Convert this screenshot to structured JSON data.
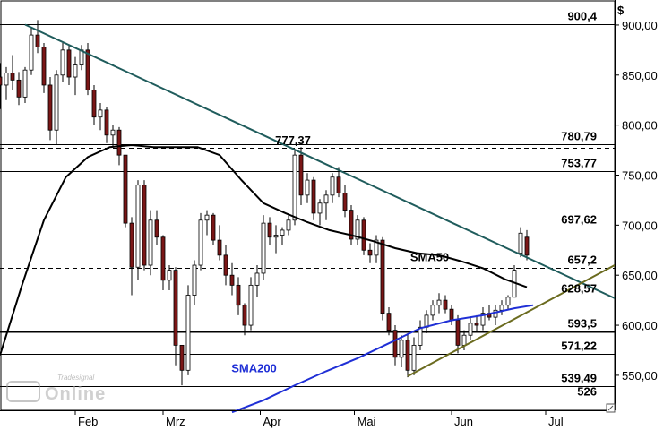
{
  "chart_data": {
    "type": "candlestick",
    "currency_label": "$",
    "y_range": [
      515,
      925
    ],
    "y_ticks": [
      {
        "value": 900,
        "label": "900,00"
      },
      {
        "value": 850,
        "label": "850,00"
      },
      {
        "value": 800,
        "label": "800,00"
      },
      {
        "value": 750,
        "label": "750,00"
      },
      {
        "value": 700,
        "label": "700,00"
      },
      {
        "value": 650,
        "label": "650,00"
      },
      {
        "value": 600,
        "label": "600,00"
      },
      {
        "value": 550,
        "label": "550,00"
      }
    ],
    "x_ticks": [
      {
        "day": 31,
        "label": "Feb"
      },
      {
        "day": 59,
        "label": "Mrz"
      },
      {
        "day": 90,
        "label": "Apr"
      },
      {
        "day": 120,
        "label": "Mai"
      },
      {
        "day": 151,
        "label": "Jun"
      },
      {
        "day": 181,
        "label": "Jul"
      }
    ],
    "x_range": [
      7,
      203
    ],
    "levels": [
      {
        "value": 900.4,
        "label": "900,4",
        "style": "solid"
      },
      {
        "value": 780.79,
        "label": "780,79",
        "style": "solid"
      },
      {
        "value": 777.37,
        "label": "",
        "style": "dashed"
      },
      {
        "value": 753.77,
        "label": "753,77",
        "style": "solid"
      },
      {
        "value": 697.62,
        "label": "697,62",
        "style": "solid"
      },
      {
        "value": 657.2,
        "label": "657,2",
        "style": "dashed"
      },
      {
        "value": 628.57,
        "label": "628,57",
        "style": "dashed"
      },
      {
        "value": 593.5,
        "label": "593,5",
        "style": "solid-bold"
      },
      {
        "value": 571.22,
        "label": "571,22",
        "style": "solid"
      },
      {
        "value": 539.49,
        "label": "539,49",
        "style": "solid"
      },
      {
        "value": 526,
        "label": "526",
        "style": "dashed"
      }
    ],
    "peak_annotation": {
      "day": 101,
      "value": 777.37,
      "label": "777,37"
    },
    "annotations": [
      {
        "text": "SMA50",
        "day": 144,
        "value": 664,
        "color": "#000000"
      },
      {
        "text": "SMA200",
        "day": 88,
        "value": 553,
        "color": "#1f2fd6"
      }
    ],
    "trendlines": [
      {
        "name": "resistance",
        "color": "#1f5c5c",
        "points": [
          [
            15,
            900.4
          ],
          [
            203,
            627
          ]
        ]
      },
      {
        "name": "support",
        "color": "#6b6b1f",
        "points": [
          [
            137,
            549
          ],
          [
            203,
            660
          ]
        ]
      }
    ],
    "sma50": [
      [
        7,
        570
      ],
      [
        14,
        640
      ],
      [
        21,
        705
      ],
      [
        28,
        748
      ],
      [
        35,
        768
      ],
      [
        42,
        778
      ],
      [
        49,
        780
      ],
      [
        56,
        778
      ],
      [
        63,
        778
      ],
      [
        70,
        778
      ],
      [
        77,
        770
      ],
      [
        84,
        745
      ],
      [
        91,
        722
      ],
      [
        98,
        712
      ],
      [
        105,
        703
      ],
      [
        112,
        695
      ],
      [
        119,
        690
      ],
      [
        126,
        684
      ],
      [
        133,
        677
      ],
      [
        140,
        672
      ],
      [
        147,
        670
      ],
      [
        154,
        664
      ],
      [
        161,
        657
      ],
      [
        168,
        646
      ],
      [
        175,
        638
      ]
    ],
    "sma200": [
      [
        81,
        513
      ],
      [
        91,
        525
      ],
      [
        101,
        540
      ],
      [
        111,
        554
      ],
      [
        121,
        567
      ],
      [
        131,
        582
      ],
      [
        141,
        597
      ],
      [
        151,
        605
      ],
      [
        161,
        610
      ],
      [
        171,
        617
      ],
      [
        177,
        620
      ]
    ],
    "candles": [
      [
        7,
        848,
        862,
        816,
        840
      ],
      [
        9,
        840,
        858,
        825,
        852
      ],
      [
        11,
        852,
        870,
        835,
        845
      ],
      [
        13,
        845,
        853,
        820,
        828
      ],
      [
        15,
        828,
        858,
        822,
        855
      ],
      [
        17,
        855,
        898,
        850,
        890
      ],
      [
        19,
        890,
        905,
        872,
        878
      ],
      [
        21,
        878,
        882,
        832,
        840
      ],
      [
        23,
        840,
        848,
        785,
        795
      ],
      [
        25,
        795,
        855,
        780,
        850
      ],
      [
        27,
        850,
        882,
        843,
        875
      ],
      [
        29,
        875,
        880,
        840,
        848
      ],
      [
        31,
        848,
        868,
        830,
        860
      ],
      [
        33,
        860,
        880,
        855,
        875
      ],
      [
        35,
        875,
        882,
        830,
        835
      ],
      [
        37,
        835,
        840,
        800,
        808
      ],
      [
        39,
        808,
        822,
        795,
        815
      ],
      [
        41,
        815,
        818,
        782,
        790
      ],
      [
        43,
        790,
        800,
        778,
        795
      ],
      [
        45,
        795,
        798,
        760,
        770
      ],
      [
        47,
        770,
        770,
        698,
        702
      ],
      [
        49,
        702,
        708,
        630,
        658
      ],
      [
        51,
        658,
        745,
        645,
        740
      ],
      [
        53,
        740,
        745,
        655,
        660
      ],
      [
        55,
        660,
        715,
        650,
        705
      ],
      [
        57,
        705,
        715,
        680,
        688
      ],
      [
        59,
        688,
        690,
        635,
        645
      ],
      [
        61,
        645,
        660,
        635,
        655
      ],
      [
        63,
        655,
        658,
        560,
        580
      ],
      [
        65,
        580,
        580,
        540,
        555
      ],
      [
        67,
        555,
        640,
        550,
        630
      ],
      [
        69,
        630,
        665,
        620,
        660
      ],
      [
        71,
        660,
        712,
        655,
        705
      ],
      [
        73,
        705,
        715,
        690,
        710
      ],
      [
        75,
        710,
        712,
        680,
        685
      ],
      [
        77,
        685,
        700,
        665,
        670
      ],
      [
        79,
        670,
        680,
        640,
        650
      ],
      [
        81,
        650,
        662,
        630,
        640
      ],
      [
        83,
        640,
        648,
        610,
        620
      ],
      [
        85,
        620,
        622,
        590,
        600
      ],
      [
        87,
        600,
        648,
        595,
        640
      ],
      [
        89,
        640,
        660,
        628,
        652
      ],
      [
        91,
        652,
        710,
        645,
        702
      ],
      [
        93,
        702,
        708,
        680,
        688
      ],
      [
        95,
        688,
        700,
        672,
        690
      ],
      [
        97,
        690,
        698,
        680,
        695
      ],
      [
        99,
        695,
        710,
        690,
        705
      ],
      [
        101,
        705,
        775,
        700,
        770
      ],
      [
        103,
        770,
        778,
        720,
        730
      ],
      [
        105,
        730,
        752,
        722,
        745
      ],
      [
        107,
        745,
        748,
        705,
        712
      ],
      [
        109,
        712,
        726,
        700,
        722
      ],
      [
        111,
        722,
        735,
        705,
        730
      ],
      [
        113,
        730,
        752,
        722,
        748
      ],
      [
        115,
        748,
        758,
        728,
        732
      ],
      [
        117,
        732,
        740,
        708,
        715
      ],
      [
        119,
        715,
        720,
        680,
        686
      ],
      [
        121,
        686,
        710,
        680,
        705
      ],
      [
        123,
        705,
        708,
        670,
        675
      ],
      [
        125,
        675,
        682,
        662,
        670
      ],
      [
        127,
        670,
        690,
        662,
        685
      ],
      [
        129,
        685,
        688,
        605,
        612
      ],
      [
        131,
        612,
        618,
        590,
        595
      ],
      [
        133,
        595,
        600,
        560,
        568
      ],
      [
        135,
        568,
        590,
        558,
        585
      ],
      [
        137,
        585,
        592,
        548,
        555
      ],
      [
        139,
        555,
        588,
        550,
        580
      ],
      [
        141,
        580,
        605,
        575,
        598
      ],
      [
        143,
        598,
        615,
        592,
        610
      ],
      [
        145,
        610,
        625,
        605,
        620
      ],
      [
        147,
        620,
        632,
        612,
        625
      ],
      [
        149,
        625,
        630,
        612,
        616
      ],
      [
        151,
        616,
        620,
        600,
        605
      ],
      [
        153,
        605,
        610,
        572,
        580
      ],
      [
        155,
        580,
        595,
        575,
        590
      ],
      [
        157,
        590,
        608,
        585,
        602
      ],
      [
        159,
        602,
        610,
        594,
        600
      ],
      [
        161,
        600,
        618,
        595,
        612
      ],
      [
        163,
        612,
        620,
        605,
        608
      ],
      [
        165,
        608,
        620,
        600,
        615
      ],
      [
        167,
        615,
        625,
        610,
        620
      ],
      [
        169,
        620,
        630,
        615,
        628
      ],
      [
        171,
        628,
        660,
        630,
        655
      ],
      [
        173,
        672,
        698,
        668,
        692
      ],
      [
        175,
        688,
        695,
        665,
        670
      ]
    ],
    "watermark": {
      "top": "Tradesignal",
      "bottom": "Online"
    }
  }
}
